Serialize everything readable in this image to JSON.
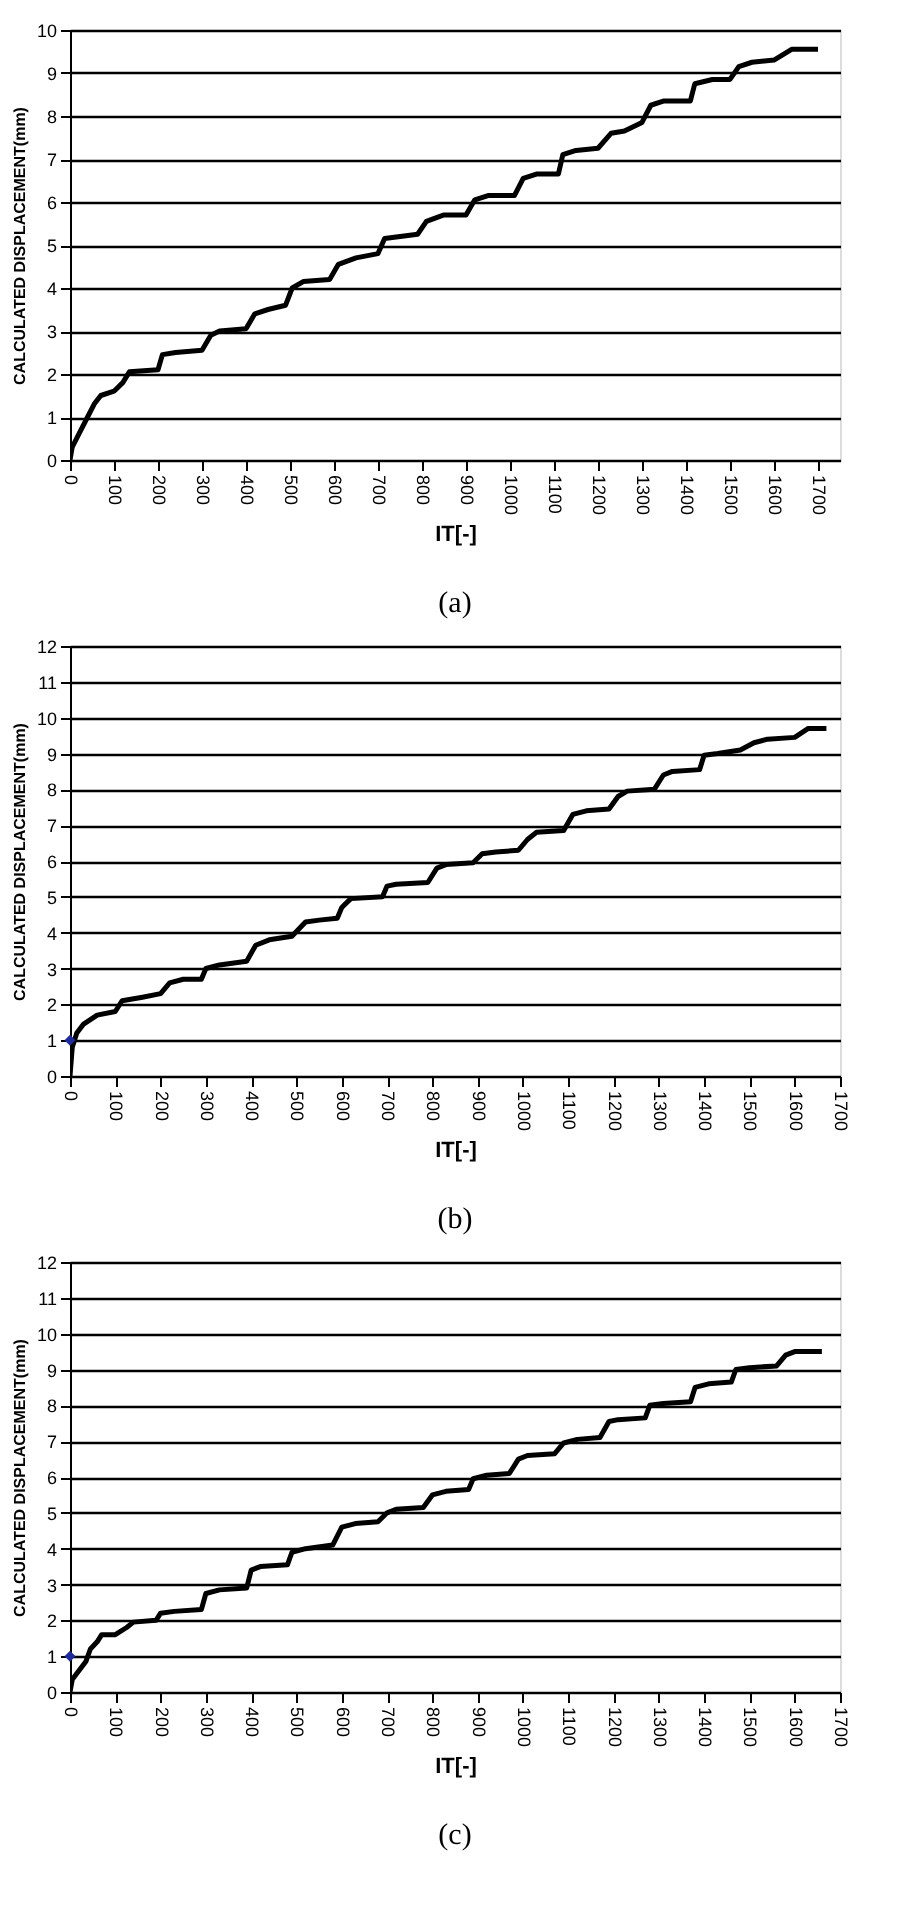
{
  "chart_data": [
    {
      "type": "line",
      "xlabel": "IT[-]",
      "ylabel": "CALCULATED DISPLACEMENT(mm)",
      "annotations": [
        "(a)"
      ],
      "xlim": [
        0,
        1750
      ],
      "xticks": [
        0,
        100,
        200,
        300,
        400,
        500,
        600,
        700,
        800,
        900,
        1000,
        1100,
        1200,
        1300,
        1400,
        1500,
        1600,
        1700
      ],
      "ylim": [
        0,
        10
      ],
      "yticks": [
        0,
        1,
        2,
        3,
        4,
        5,
        6,
        7,
        8,
        9,
        10
      ],
      "grid": "y",
      "legend": false,
      "series": [
        {
          "type": "line",
          "color": "#000000",
          "marker": "none",
          "x": [
            0,
            5,
            20,
            40,
            55,
            70,
            100,
            120,
            135,
            200,
            210,
            240,
            300,
            320,
            340,
            400,
            420,
            450,
            490,
            505,
            530,
            590,
            610,
            650,
            700,
            715,
            790,
            810,
            850,
            900,
            920,
            950,
            1010,
            1030,
            1060,
            1110,
            1120,
            1150,
            1200,
            1230,
            1260,
            1300,
            1320,
            1350,
            1410,
            1420,
            1460,
            1500,
            1520,
            1550,
            1600,
            1640,
            1700
          ],
          "values": [
            0,
            0.3,
            0.6,
            1.0,
            1.3,
            1.5,
            1.6,
            1.8,
            2.05,
            2.1,
            2.45,
            2.5,
            2.55,
            2.9,
            3.0,
            3.05,
            3.4,
            3.5,
            3.6,
            4.0,
            4.15,
            4.2,
            4.55,
            4.7,
            4.8,
            5.15,
            5.25,
            5.55,
            5.7,
            5.7,
            6.05,
            6.15,
            6.15,
            6.55,
            6.65,
            6.65,
            7.1,
            7.2,
            7.25,
            7.6,
            7.65,
            7.85,
            8.25,
            8.35,
            8.35,
            8.75,
            8.85,
            8.85,
            9.15,
            9.25,
            9.3,
            9.55,
            9.55
          ]
        }
      ]
    },
    {
      "type": "line",
      "xlabel": "IT[-]",
      "ylabel": "CALCULATED DISPLACEMENT(mm)",
      "annotations": [
        "(b)"
      ],
      "xlim": [
        0,
        1700
      ],
      "xticks": [
        0,
        100,
        200,
        300,
        400,
        500,
        600,
        700,
        800,
        900,
        1000,
        1100,
        1200,
        1300,
        1400,
        1500,
        1600,
        1700
      ],
      "ylim": [
        0,
        12
      ],
      "yticks": [
        0,
        1,
        2,
        3,
        4,
        5,
        6,
        7,
        8,
        9,
        10,
        11,
        12
      ],
      "grid": "y",
      "legend": false,
      "series": [
        {
          "type": "line",
          "color": "#000000",
          "marker": "none",
          "x": [
            0,
            5,
            15,
            30,
            60,
            100,
            115,
            160,
            200,
            220,
            250,
            290,
            300,
            330,
            390,
            410,
            440,
            490,
            520,
            550,
            590,
            600,
            620,
            690,
            700,
            720,
            790,
            810,
            830,
            890,
            910,
            940,
            990,
            1010,
            1030,
            1090,
            1110,
            1140,
            1190,
            1210,
            1230,
            1290,
            1310,
            1330,
            1390,
            1400,
            1430,
            1480,
            1510,
            1540,
            1600,
            1630,
            1670
          ],
          "values": [
            0,
            0.8,
            1.2,
            1.45,
            1.7,
            1.8,
            2.1,
            2.2,
            2.3,
            2.6,
            2.7,
            2.7,
            3.0,
            3.1,
            3.2,
            3.65,
            3.8,
            3.9,
            4.3,
            4.35,
            4.4,
            4.7,
            4.95,
            5.0,
            5.3,
            5.35,
            5.4,
            5.8,
            5.9,
            5.95,
            6.2,
            6.25,
            6.3,
            6.6,
            6.8,
            6.85,
            7.3,
            7.4,
            7.45,
            7.8,
            7.95,
            8.0,
            8.4,
            8.5,
            8.55,
            8.95,
            9.0,
            9.1,
            9.3,
            9.4,
            9.45,
            9.7,
            9.7
          ]
        },
        {
          "type": "scatter",
          "color": "#1f2a9c",
          "marker": "diamond",
          "x": [
            0
          ],
          "values": [
            1
          ]
        }
      ]
    },
    {
      "type": "line",
      "xlabel": "IT[-]",
      "ylabel": "CALCULATED DISPLACEMENT(mm)",
      "annotations": [
        "(c)"
      ],
      "xlim": [
        0,
        1700
      ],
      "xticks": [
        0,
        100,
        200,
        300,
        400,
        500,
        600,
        700,
        800,
        900,
        1000,
        1100,
        1200,
        1300,
        1400,
        1500,
        1600,
        1700
      ],
      "ylim": [
        0,
        12
      ],
      "yticks": [
        0,
        1,
        2,
        3,
        4,
        5,
        6,
        7,
        8,
        9,
        10,
        11,
        12
      ],
      "grid": "y",
      "legend": false,
      "series": [
        {
          "type": "line",
          "color": "#000000",
          "marker": "none",
          "x": [
            0,
            5,
            20,
            35,
            45,
            60,
            70,
            100,
            125,
            140,
            190,
            200,
            230,
            290,
            300,
            330,
            390,
            400,
            420,
            480,
            490,
            520,
            580,
            600,
            630,
            680,
            700,
            720,
            780,
            800,
            830,
            880,
            890,
            920,
            970,
            990,
            1010,
            1070,
            1090,
            1120,
            1170,
            1190,
            1210,
            1270,
            1280,
            1310,
            1370,
            1380,
            1410,
            1460,
            1470,
            1500,
            1560,
            1580,
            1600,
            1660
          ],
          "values": [
            0,
            0.35,
            0.6,
            0.85,
            1.2,
            1.4,
            1.6,
            1.6,
            1.8,
            1.95,
            2.0,
            2.2,
            2.25,
            2.3,
            2.75,
            2.85,
            2.9,
            3.4,
            3.5,
            3.55,
            3.9,
            4.0,
            4.1,
            4.6,
            4.7,
            4.75,
            5.0,
            5.1,
            5.15,
            5.5,
            5.6,
            5.65,
            5.95,
            6.05,
            6.1,
            6.5,
            6.6,
            6.65,
            6.95,
            7.05,
            7.1,
            7.55,
            7.6,
            7.65,
            8.0,
            8.05,
            8.1,
            8.5,
            8.6,
            8.65,
            9.0,
            9.05,
            9.1,
            9.4,
            9.5,
            9.5
          ]
        },
        {
          "type": "scatter",
          "color": "#1f2a9c",
          "marker": "diamond",
          "x": [
            0
          ],
          "values": [
            1
          ]
        }
      ]
    }
  ]
}
